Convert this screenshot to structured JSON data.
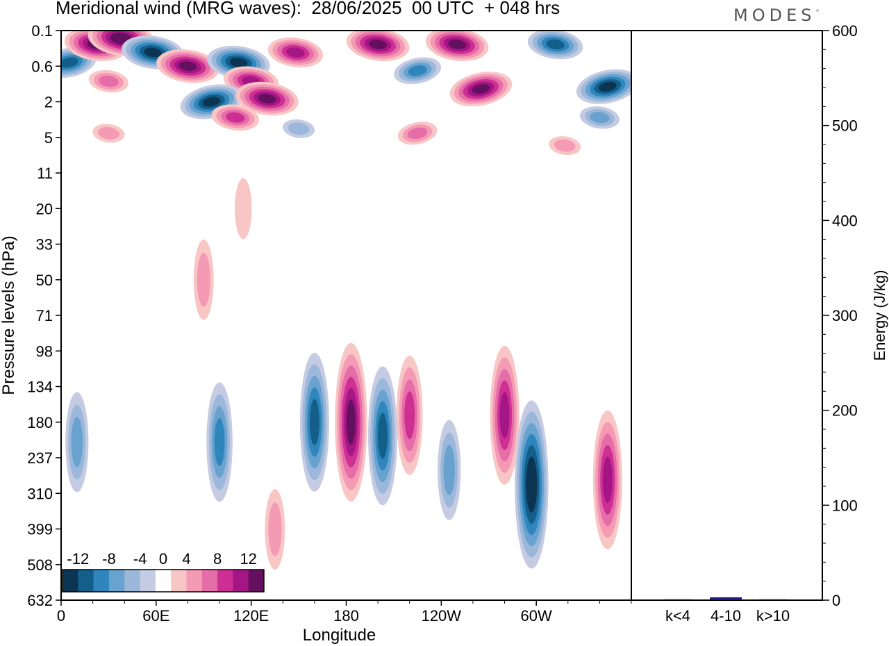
{
  "title": "Meridional wind (MRG waves):  28/06/2025  00 UTC  + 048 hrs",
  "logo_text": "MODES",
  "logo_mark": "°",
  "chart_data": [
    {
      "type": "heatmap",
      "title": "Meridional wind (MRG waves):  28/06/2025  00 UTC  + 048 hrs",
      "xlabel": "Longitude",
      "ylabel": "Pressure levels (hPa)",
      "x_tick_labels": [
        "0",
        "60E",
        "120E",
        "180",
        "120W",
        "60W"
      ],
      "y_tick_labels": [
        "0.1",
        "0.6",
        "2",
        "5",
        "11",
        "20",
        "33",
        "50",
        "71",
        "98",
        "134",
        "180",
        "237",
        "310",
        "399",
        "508",
        "632"
      ],
      "colorbar": {
        "labels": [
          "-12",
          "-8",
          "-4",
          "0",
          "4",
          "8",
          "12"
        ],
        "levels": [
          -14,
          -12,
          -10,
          -8,
          -6,
          -4,
          -2,
          2,
          4,
          6,
          8,
          10,
          12,
          14
        ],
        "colors": [
          "#0c3553",
          "#135f8a",
          "#2f86bd",
          "#6aa2cf",
          "#9bb8da",
          "#c5cbe3",
          "#ffffff",
          "#f9c6c6",
          "#f59ab5",
          "#e56ea8",
          "#ce2f93",
          "#a41585",
          "#64105f"
        ]
      },
      "cells": [
        {
          "lon": 5,
          "lev": 0.5,
          "v": -10
        },
        {
          "lon": 22,
          "lev": 0.2,
          "v": 12
        },
        {
          "lon": 38,
          "lev": 0.15,
          "v": 13
        },
        {
          "lon": 30,
          "lev": 1.0,
          "v": 6
        },
        {
          "lon": 58,
          "lev": 0.3,
          "v": -12
        },
        {
          "lon": 80,
          "lev": 0.6,
          "v": 12
        },
        {
          "lon": 112,
          "lev": 0.5,
          "v": -12
        },
        {
          "lon": 148,
          "lev": 0.3,
          "v": 10
        },
        {
          "lon": 120,
          "lev": 1.0,
          "v": 10
        },
        {
          "lon": 95,
          "lev": 2.0,
          "v": -12
        },
        {
          "lon": 130,
          "lev": 1.8,
          "v": 12
        },
        {
          "lon": 110,
          "lev": 3.0,
          "v": 8
        },
        {
          "lon": 200,
          "lev": 0.2,
          "v": 12
        },
        {
          "lon": 225,
          "lev": 0.7,
          "v": -8
        },
        {
          "lon": 250,
          "lev": 0.2,
          "v": 12
        },
        {
          "lon": 265,
          "lev": 1.3,
          "v": 12
        },
        {
          "lon": 312,
          "lev": 0.2,
          "v": -10
        },
        {
          "lon": 345,
          "lev": 1.2,
          "v": -12
        },
        {
          "lon": 340,
          "lev": 3.0,
          "v": -6
        },
        {
          "lon": 30,
          "lev": 4.5,
          "v": 4
        },
        {
          "lon": 150,
          "lev": 4.0,
          "v": -4
        },
        {
          "lon": 225,
          "lev": 4.5,
          "v": 6
        },
        {
          "lon": 318,
          "lev": 6.0,
          "v": 4
        },
        {
          "lon": 115,
          "lev": 20.0,
          "v": 2
        },
        {
          "lon": 90,
          "lev": 50.0,
          "v": 4
        },
        {
          "lon": 10,
          "lev": 210.0,
          "v": -6
        },
        {
          "lon": 100,
          "lev": 210.0,
          "v": -8
        },
        {
          "lon": 160,
          "lev": 180.0,
          "v": -10
        },
        {
          "lon": 183,
          "lev": 180.0,
          "v": 12
        },
        {
          "lon": 203,
          "lev": 200.0,
          "v": -10
        },
        {
          "lon": 220,
          "lev": 170.0,
          "v": 8
        },
        {
          "lon": 245,
          "lev": 260.0,
          "v": -6
        },
        {
          "lon": 280,
          "lev": 170.0,
          "v": 10
        },
        {
          "lon": 297,
          "lev": 290.0,
          "v": -13
        },
        {
          "lon": 345,
          "lev": 280.0,
          "v": 10
        },
        {
          "lon": 135,
          "lev": 400.0,
          "v": 4
        }
      ]
    },
    {
      "type": "bar",
      "categories": [
        "k<4",
        "4-10",
        "k>10"
      ],
      "values": [
        1,
        3,
        1
      ],
      "ylabel": "Energy (J/kg)",
      "ylim": [
        0,
        600
      ],
      "y_tick_labels": [
        "0",
        "100",
        "200",
        "300",
        "400",
        "500",
        "600"
      ],
      "bar_color": "#1a1a7a"
    }
  ]
}
